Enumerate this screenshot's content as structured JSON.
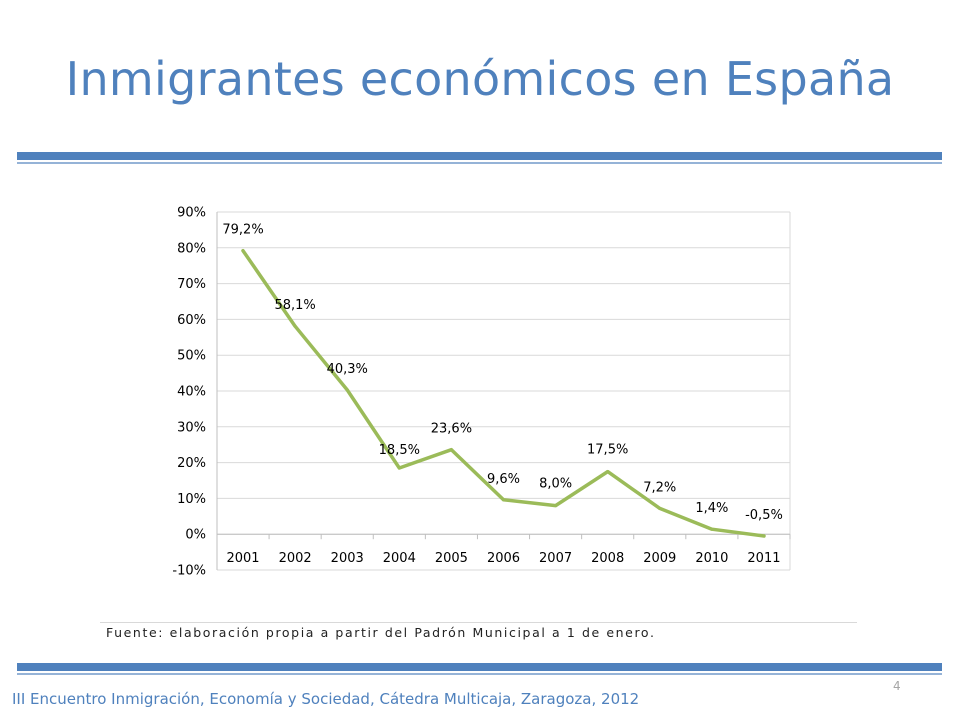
{
  "slide": {
    "title": "Inmigrantes económicos en España",
    "source": "Fuente: elaboración propia a partir del Padrón Municipal a 1 de enero.",
    "footer": "III Encuentro Inmigración, Economía y Sociedad, Cátedra Multicaja, Zaragoza, 2012",
    "page_number": "4"
  },
  "colors": {
    "title": "#4f81bd",
    "rule": "#4f81bd",
    "series": "#9bbb59",
    "grid": "#d9d9d9"
  },
  "chart_data": {
    "type": "line",
    "title": "",
    "xlabel": "",
    "ylabel": "",
    "categories": [
      "2001",
      "2002",
      "2003",
      "2004",
      "2005",
      "2006",
      "2007",
      "2008",
      "2009",
      "2010",
      "2011"
    ],
    "values": [
      79.2,
      58.1,
      40.3,
      18.5,
      23.6,
      9.6,
      8.0,
      17.5,
      7.2,
      1.4,
      -0.5
    ],
    "data_labels": [
      "79,2%",
      "58,1%",
      "40,3%",
      "18,5%",
      "23,6%",
      "9,6%",
      "8,0%",
      "17,5%",
      "7,2%",
      "1,4%",
      "-0,5%"
    ],
    "y_ticks": [
      "-10%",
      "0%",
      "10%",
      "20%",
      "30%",
      "40%",
      "50%",
      "60%",
      "70%",
      "80%",
      "90%"
    ],
    "ylim": [
      -10,
      90
    ],
    "grid": true,
    "legend": "none"
  }
}
